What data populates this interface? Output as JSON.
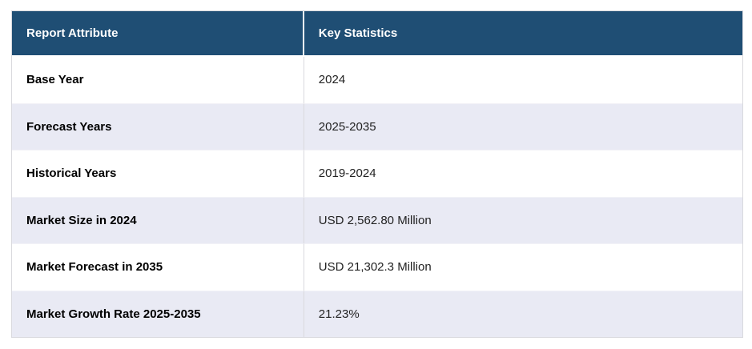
{
  "table": {
    "columns": [
      {
        "label": "Report Attribute"
      },
      {
        "label": "Key Statistics"
      }
    ],
    "rows": [
      {
        "attribute": "Base Year",
        "value": "2024"
      },
      {
        "attribute": "Forecast Years",
        "value": "2025-2035"
      },
      {
        "attribute": "Historical Years",
        "value": "2019-2024"
      },
      {
        "attribute": "Market Size in 2024",
        "value": "USD 2,562.80 Million"
      },
      {
        "attribute": "Market Forecast in 2035",
        "value": "USD 21,302.3 Million"
      },
      {
        "attribute": "Market Growth Rate 2025-2035",
        "value": "21.23%"
      }
    ],
    "colors": {
      "header_bg": "#1F4E74",
      "header_text": "#FFFFFF",
      "row_bg": "#FFFFFF",
      "row_alt_bg": "#E9EAF4",
      "border": "#D9D9DE",
      "label_text": "#000000",
      "value_text": "#222222"
    }
  }
}
